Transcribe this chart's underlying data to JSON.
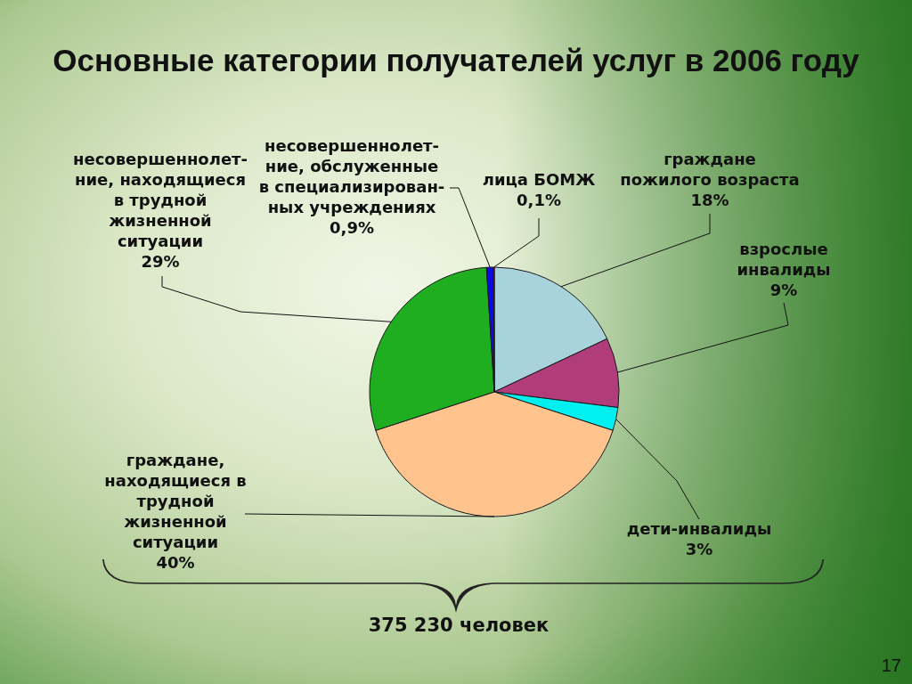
{
  "chart_data": {
    "type": "pie",
    "title": "Основные категории получателей услуг в 2006 году",
    "categories": [
      "граждане\nпожилого возраста",
      "взрослые\nинвалиды",
      "дети-инвалиды",
      "граждане,\nнаходящиеся в\nтрудной\nжизненной\nситуации",
      "несовершеннолет-\nние, находящиеся\nв трудной\nжизненной\nситуации",
      "несовершеннолет-\nние, обслуженные\nв специализирован-\nных учреждениях",
      "лица БОМЖ"
    ],
    "values": [
      18,
      9,
      3,
      40,
      29,
      0.9,
      0.1
    ],
    "colors": [
      "#a9d3dc",
      "#b03c7c",
      "#00f0f0",
      "#ffc48e",
      "#1fae1f",
      "#0a0ae6",
      "#e60000"
    ],
    "value_labels": [
      "18%",
      "9%",
      "3%",
      "40%",
      "29%",
      "0,9%",
      "0,1%"
    ],
    "annotations": [
      "375 230 человек",
      "17"
    ]
  }
}
